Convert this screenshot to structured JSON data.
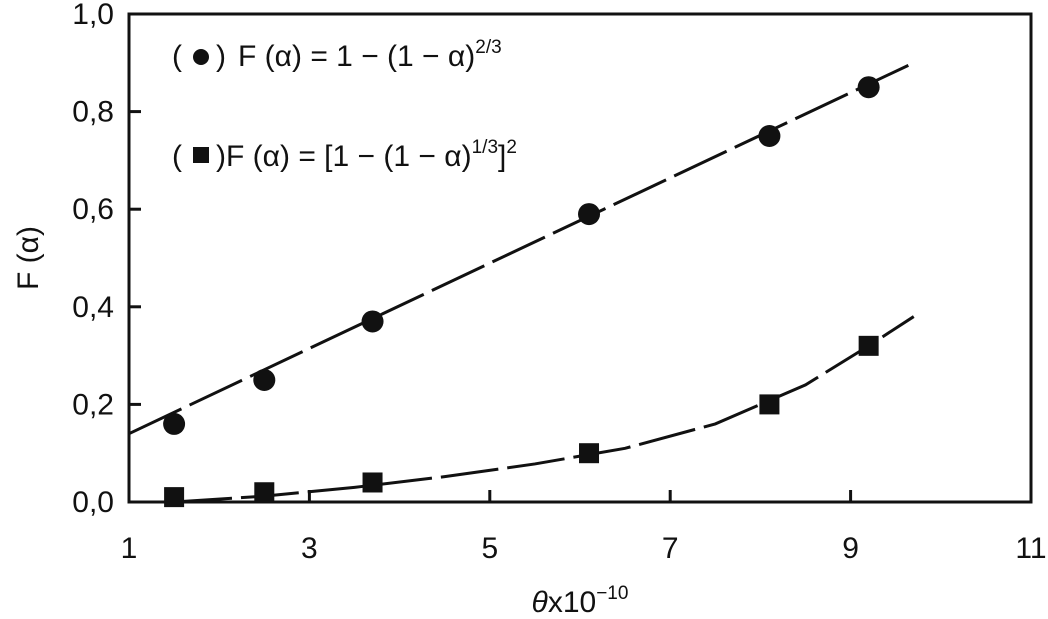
{
  "chart_data": {
    "type": "scatter",
    "x_axis": {
      "label_symbol": "θ",
      "label_text": "x10",
      "label_exponent": "−10",
      "lim": [
        1,
        11
      ],
      "ticks": [
        1,
        3,
        5,
        7,
        9,
        11
      ],
      "tick_labels": [
        "1",
        "3",
        "5",
        "7",
        "9",
        "11"
      ]
    },
    "y_axis": {
      "label": "F (α)",
      "lim": [
        0,
        1
      ],
      "ticks": [
        0,
        0.2,
        0.4,
        0.6,
        0.8,
        1.0
      ],
      "tick_labels": [
        "0,0",
        "0,2",
        "0,4",
        "0,6",
        "0,8",
        "1,0"
      ]
    },
    "grid": false,
    "legend_position": "top-left",
    "series": [
      {
        "marker": "circle",
        "legend": {
          "open": "(",
          "close": ")",
          "base": "F (α) = 1 − (1 − α)",
          "exponent": "2/3",
          "tail": ""
        },
        "x": [
          1.5,
          2.5,
          3.7,
          6.1,
          8.1,
          9.2
        ],
        "y": [
          0.16,
          0.25,
          0.37,
          0.59,
          0.75,
          0.85
        ],
        "fit": {
          "x": [
            1.0,
            9.7
          ],
          "y": [
            0.14,
            0.9
          ]
        }
      },
      {
        "marker": "square",
        "legend": {
          "open": "(",
          "close": ")",
          "base": "F (α) = [1 − (1 − α)",
          "exponent": "1/3",
          "tail": "]",
          "tail_exponent": "2"
        },
        "x": [
          1.5,
          2.5,
          3.7,
          6.1,
          8.1,
          9.2
        ],
        "y": [
          0.01,
          0.02,
          0.04,
          0.1,
          0.2,
          0.32
        ],
        "fit": {
          "x": [
            1.5,
            2.5,
            3.5,
            4.5,
            5.5,
            6.5,
            7.5,
            8.5,
            9.2,
            9.7
          ],
          "y": [
            0.0,
            0.012,
            0.03,
            0.052,
            0.078,
            0.11,
            0.16,
            0.24,
            0.32,
            0.38
          ]
        }
      }
    ]
  }
}
